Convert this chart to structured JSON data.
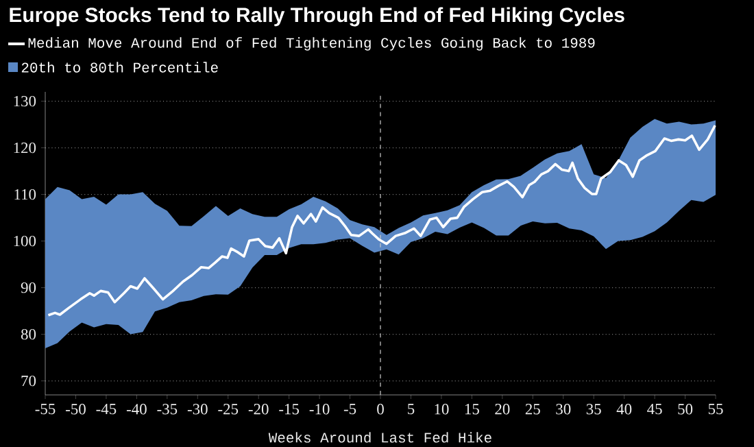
{
  "chart_data": {
    "type": "line",
    "title": "Europe Stocks Tend to Rally Through End of Fed Hiking Cycles",
    "xlabel": "Weeks Around Last Fed Hike",
    "xlim": [
      -55,
      55
    ],
    "ylim": [
      67,
      132
    ],
    "xticks": [
      -55,
      -50,
      -45,
      -40,
      -35,
      -30,
      -25,
      -20,
      -15,
      -10,
      -5,
      0,
      5,
      10,
      15,
      20,
      25,
      30,
      35,
      40,
      45,
      50,
      55
    ],
    "yticks": [
      70,
      80,
      90,
      100,
      110,
      120,
      130
    ],
    "grid": "y",
    "legend": "top left",
    "ref_lines": [
      {
        "axis": "x",
        "value": 0,
        "line_style": "dashed",
        "color": "#cccccc"
      }
    ],
    "series": [
      {
        "name": "Median Move Around End of Fed Tightening Cycles Going Back to 1989",
        "color": "#ffffff",
        "type": "line",
        "x": [
          -54.5,
          -53.4,
          -52.6,
          -51.1,
          -49.2,
          -47.7,
          -47,
          -45.9,
          -44.7,
          -43.6,
          -42.1,
          -41,
          -39.9,
          -38.7,
          -37.2,
          -35.7,
          -34.2,
          -32.4,
          -30.9,
          -29.4,
          -28.2,
          -27.1,
          -26,
          -25.1,
          -24.5,
          -23.4,
          -22.4,
          -21.5,
          -20,
          -18.9,
          -17.7,
          -16.6,
          -15.5,
          -14.5,
          -13.6,
          -12.6,
          -11.4,
          -10.6,
          -9.5,
          -8.4,
          -6.9,
          -5.7,
          -4.8,
          -3.5,
          -2,
          -1.3,
          -0.2,
          1,
          2.5,
          4,
          5.5,
          6.6,
          8.1,
          9.2,
          10.3,
          11.5,
          12.6,
          13.7,
          15.2,
          16.7,
          18,
          19.3,
          20.8,
          21.9,
          23.3,
          24.4,
          25.3,
          26.4,
          27.5,
          28.7,
          29.8,
          30.9,
          31.5,
          32.4,
          33.5,
          34.7,
          35.4,
          36.2,
          37.7,
          39.1,
          40.3,
          41.4,
          42.5,
          43.6,
          45.1,
          46.6,
          47.7,
          48.9,
          50,
          51.1,
          52.3,
          53.7,
          54.9
        ],
        "values": [
          84.1,
          84.6,
          84.2,
          85.7,
          87.5,
          88.8,
          88.3,
          89.3,
          89,
          86.9,
          88.8,
          90.3,
          89.8,
          92,
          89.8,
          87.5,
          89.1,
          91.3,
          92.7,
          94.4,
          94.2,
          95.4,
          96.7,
          96.4,
          98.4,
          97.6,
          96.7,
          100.1,
          100.4,
          98.9,
          98.6,
          100.6,
          97.4,
          103,
          105.4,
          103.8,
          105.8,
          104.2,
          107.2,
          106,
          105,
          103,
          101.3,
          101.1,
          102.5,
          101.6,
          100.3,
          99.4,
          101.1,
          101.7,
          102.7,
          101.1,
          104.6,
          105,
          103,
          104.8,
          105,
          107.3,
          109,
          110.5,
          110.8,
          111.8,
          112.8,
          111.6,
          109.4,
          112,
          112.7,
          114.3,
          115,
          116.5,
          115.3,
          115,
          116.8,
          113.4,
          111.4,
          110.1,
          110.1,
          113.4,
          114.8,
          117.3,
          116.3,
          113.8,
          117.3,
          118.3,
          119.3,
          122,
          121.5,
          121.8,
          121.6,
          122.6,
          119.6,
          121.8,
          124.8
        ]
      },
      {
        "name": "20th to 80th Percentile",
        "color": "#5a87c4",
        "type": "area",
        "x": [
          -55,
          -53,
          -51,
          -49,
          -47,
          -45,
          -43,
          -41,
          -39,
          -37,
          -35,
          -33,
          -31,
          -29,
          -27,
          -25,
          -23,
          -21,
          -19,
          -17,
          -15,
          -13,
          -11,
          -9,
          -7,
          -5,
          -3,
          -1,
          1,
          3,
          5,
          7,
          9,
          11,
          13,
          15,
          17,
          19,
          21,
          23,
          25,
          27,
          29,
          31,
          33,
          35,
          37,
          39,
          41,
          43,
          45,
          47,
          49,
          51,
          53,
          55
        ],
        "values": [
          null,
          null,
          null,
          null,
          null,
          null,
          null,
          null,
          null,
          null,
          null,
          null,
          null,
          null,
          null,
          null,
          null,
          null,
          null,
          null,
          null,
          null,
          null,
          null,
          null,
          null,
          null,
          null,
          null,
          null,
          null,
          null,
          null,
          null,
          null,
          null,
          null,
          null,
          null,
          null,
          null,
          null,
          null,
          null,
          null,
          null,
          null,
          null,
          null,
          null,
          null,
          null,
          null,
          null,
          null,
          null
        ],
        "upper": [
          109,
          111.6,
          110.9,
          109,
          109.5,
          107.8,
          110,
          110,
          110.5,
          108,
          106.5,
          103.3,
          103.2,
          105.3,
          107.5,
          105.4,
          107,
          105.8,
          105.2,
          105.2,
          106.8,
          107.9,
          109.5,
          108.5,
          107,
          104.5,
          103.6,
          103,
          101.3,
          102.8,
          104,
          105.5,
          106,
          106.6,
          107.7,
          110.5,
          112,
          113.2,
          113.3,
          114,
          115.7,
          117.5,
          118.8,
          119.3,
          120.8,
          114.3,
          113.5,
          117.2,
          122.2,
          124.5,
          126.2,
          125.2,
          125.6,
          125,
          125.2,
          125.9
        ],
        "lower": [
          77,
          78.1,
          80.6,
          82.5,
          81.5,
          82.2,
          82,
          80,
          80.5,
          84.9,
          85.7,
          86.9,
          87.3,
          88.2,
          88.6,
          88.5,
          90.3,
          94.3,
          97,
          97,
          98.5,
          99.3,
          99.3,
          99.6,
          100.3,
          100.6,
          99,
          97.5,
          98.2,
          97.1,
          99.8,
          100.6,
          102,
          101.5,
          102.9,
          104,
          102.8,
          101.2,
          101.2,
          103.3,
          104.2,
          103.8,
          103.9,
          102.7,
          102.3,
          101,
          98.3,
          100,
          100.2,
          100.9,
          102.1,
          104,
          106.5,
          108.8,
          108.4,
          109.9
        ]
      }
    ]
  }
}
